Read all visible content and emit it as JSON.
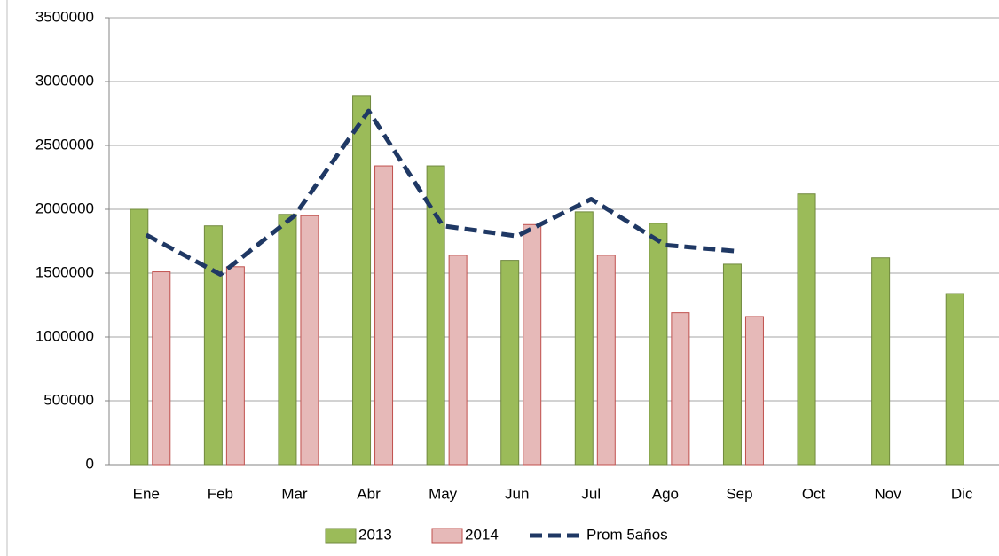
{
  "chart_data": {
    "type": "bar",
    "categories": [
      "Ene",
      "Feb",
      "Mar",
      "Abr",
      "May",
      "Jun",
      "Jul",
      "Ago",
      "Sep",
      "Oct",
      "Nov",
      "Dic"
    ],
    "series": [
      {
        "name": "2013",
        "type": "bar",
        "color": "#9bbb59",
        "stroke": "#71893f",
        "values": [
          2000000,
          1870000,
          1960000,
          2890000,
          2340000,
          1600000,
          1980000,
          1890000,
          1570000,
          2120000,
          1620000,
          1340000
        ]
      },
      {
        "name": "2014",
        "type": "bar",
        "color": "#e6b9b8",
        "stroke": "#c0504d",
        "values": [
          1510000,
          1550000,
          1950000,
          2340000,
          1640000,
          1880000,
          1640000,
          1190000,
          1160000,
          null,
          null,
          null
        ]
      },
      {
        "name": "Prom 5años",
        "type": "line",
        "color": "#1f3864",
        "values": [
          1800000,
          1490000,
          1950000,
          2770000,
          1870000,
          1790000,
          2080000,
          1720000,
          1670000,
          null,
          null,
          null
        ]
      }
    ],
    "ylim": [
      0,
      3500000
    ],
    "yticks": [
      0,
      500000,
      1000000,
      1500000,
      2000000,
      2500000,
      3000000,
      3500000
    ],
    "grid": true
  }
}
